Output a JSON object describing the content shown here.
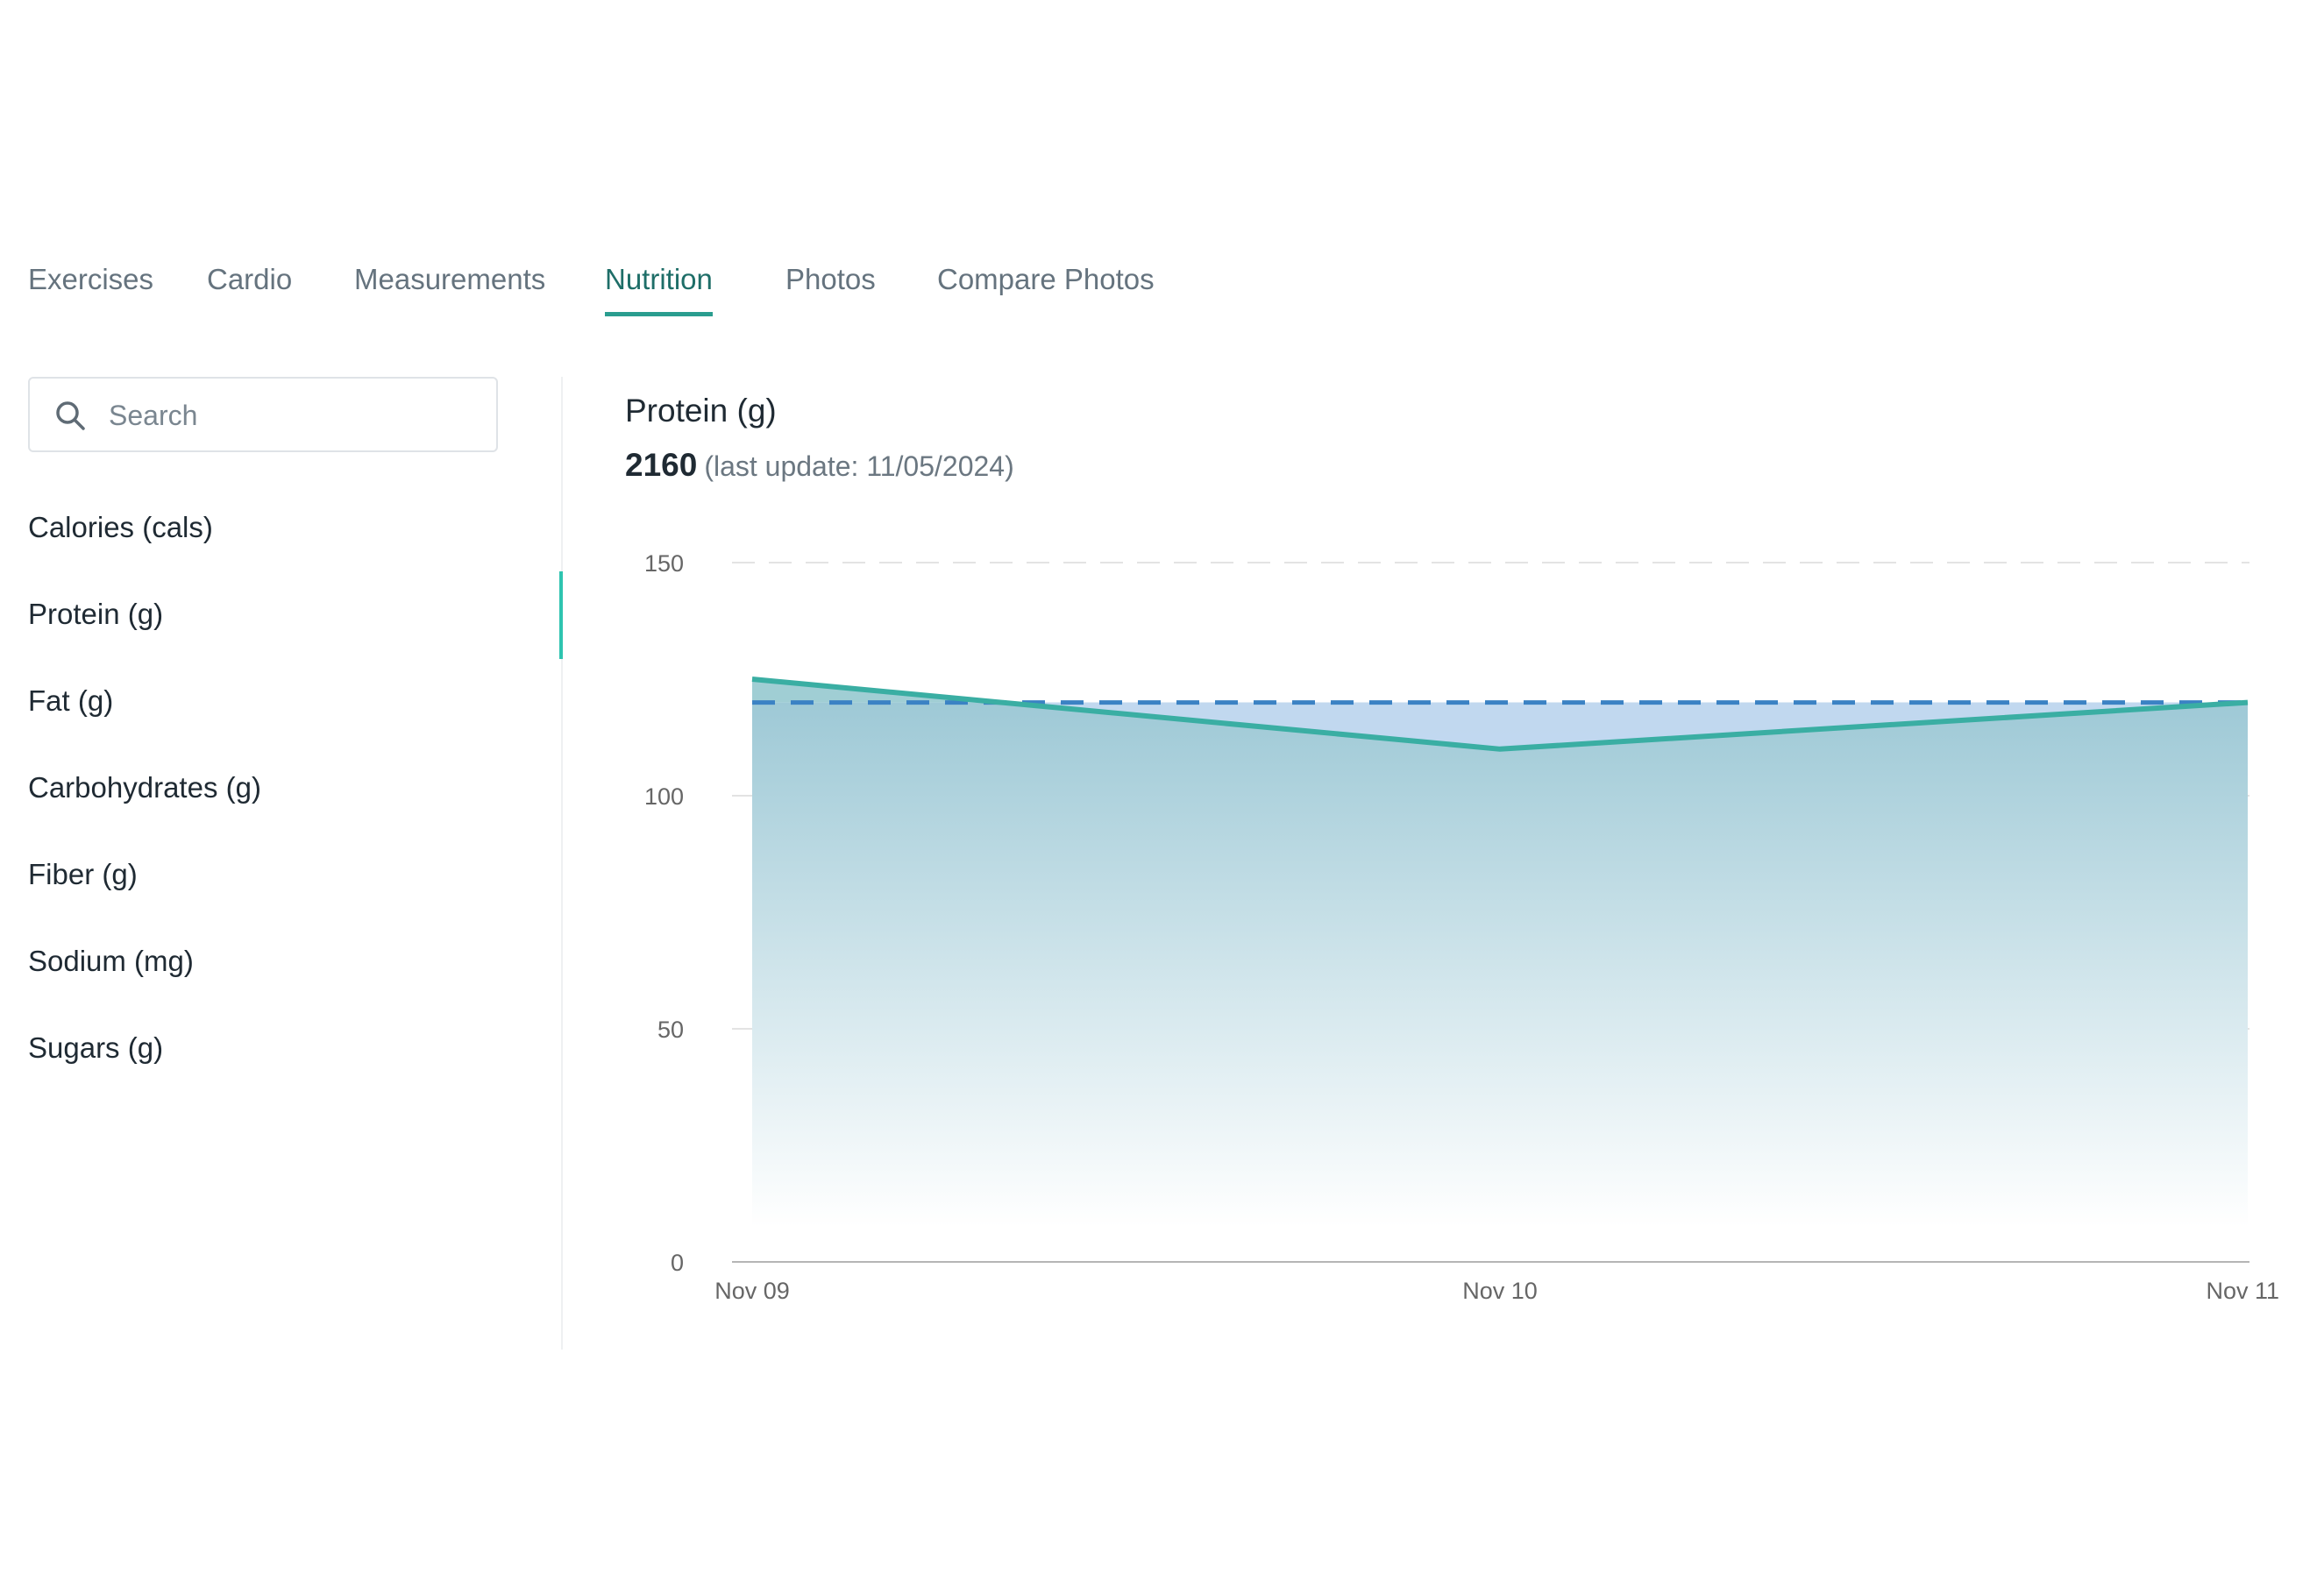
{
  "tabs": [
    {
      "label": "Exercises",
      "active": false
    },
    {
      "label": "Cardio",
      "active": false
    },
    {
      "label": "Measurements",
      "active": false
    },
    {
      "label": "Nutrition",
      "active": true
    },
    {
      "label": "Photos",
      "active": false
    },
    {
      "label": "Compare Photos",
      "active": false
    }
  ],
  "search": {
    "placeholder": "Search",
    "value": "",
    "icon": "search-icon"
  },
  "metrics": [
    {
      "label": "Calories (cals)",
      "selected": false
    },
    {
      "label": "Protein (g)",
      "selected": true
    },
    {
      "label": "Fat (g)",
      "selected": false
    },
    {
      "label": "Carbohydrates (g)",
      "selected": false
    },
    {
      "label": "Fiber (g)",
      "selected": false
    },
    {
      "label": "Sodium (mg)",
      "selected": false
    },
    {
      "label": "Sugars (g)",
      "selected": false
    }
  ],
  "panel": {
    "title": "Protein (g)",
    "value": "2160",
    "last_update": "(last update: 11/05/2024)"
  },
  "colors": {
    "accent": "#2a9d8f",
    "line": "#3aaea3",
    "target_line": "#3b82c4",
    "area_top": "#9ec9d6",
    "target_fill": "#c4d9f2"
  },
  "chart_data": {
    "type": "area",
    "x": [
      "Nov 09",
      "Nov 10",
      "Nov 11"
    ],
    "series": [
      {
        "values": [
          125,
          110,
          120
        ]
      }
    ],
    "target": 120,
    "y_ticks": [
      0,
      50,
      100,
      150
    ],
    "ylim": [
      0,
      150
    ],
    "grid": true
  }
}
